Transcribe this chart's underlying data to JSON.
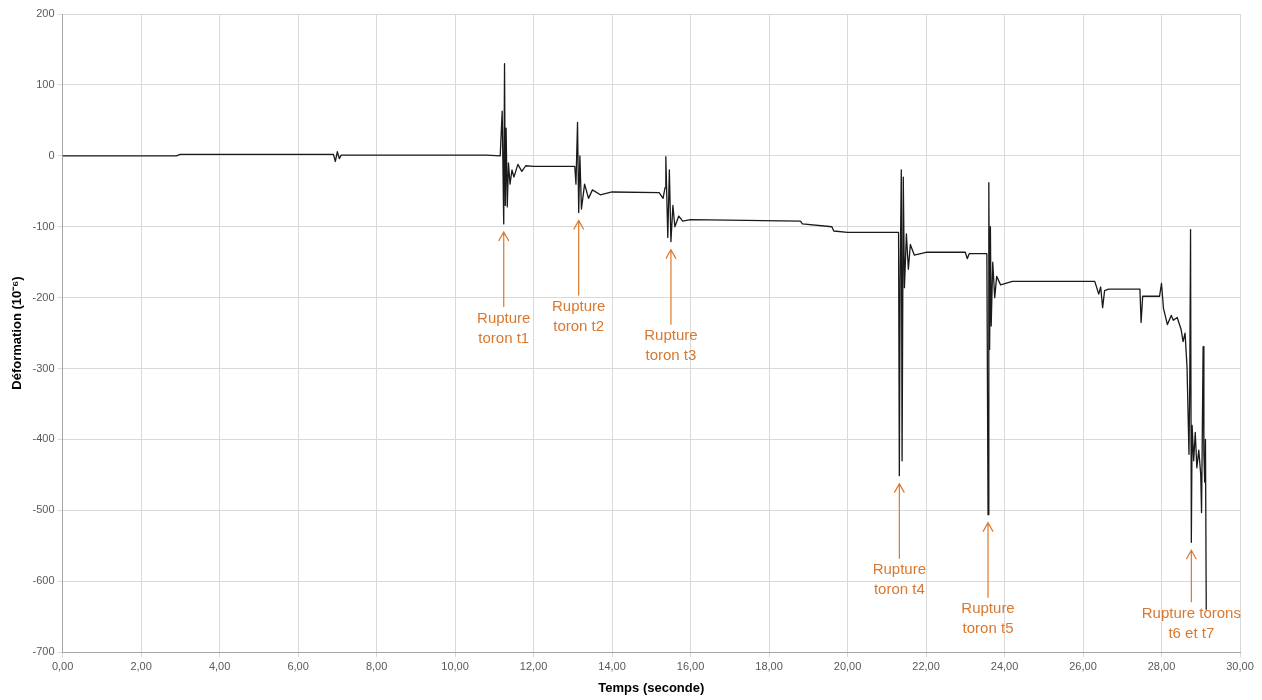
{
  "chart_data": {
    "type": "line",
    "xlabel": "Temps (seconde)",
    "ylabel": "Déformation (10⁻⁶)",
    "x": [
      0,
      2.9,
      3.0,
      6.9,
      6.95,
      7.0,
      7.05,
      7.1,
      10.8,
      11.15,
      11.2,
      11.24,
      11.26,
      11.28,
      11.3,
      11.33,
      11.36,
      11.4,
      11.45,
      11.5,
      11.6,
      11.7,
      11.8,
      12.0,
      13.05,
      13.08,
      13.12,
      13.15,
      13.18,
      13.22,
      13.3,
      13.4,
      13.5,
      13.7,
      14.0,
      15.2,
      15.3,
      15.35,
      15.37,
      15.42,
      15.46,
      15.5,
      15.55,
      15.6,
      15.7,
      15.8,
      16.0,
      18.8,
      18.85,
      19.6,
      19.65,
      20.0,
      21.3,
      21.32,
      21.34,
      21.37,
      21.39,
      21.42,
      21.45,
      21.5,
      21.55,
      21.6,
      21.7,
      22.0,
      23.0,
      23.05,
      23.1,
      23.55,
      23.58,
      23.6,
      23.62,
      23.64,
      23.66,
      23.7,
      23.75,
      23.8,
      23.9,
      24.2,
      26.3,
      26.4,
      26.45,
      26.5,
      26.55,
      26.65,
      27.45,
      27.48,
      27.52,
      27.95,
      28.0,
      28.05,
      28.15,
      28.25,
      28.3,
      28.4,
      28.5,
      28.55,
      28.6,
      28.65,
      28.7,
      28.72,
      28.74,
      28.76,
      28.78,
      28.82,
      28.86,
      28.9,
      28.95,
      29.0,
      29.02,
      29.04,
      29.06,
      29.08,
      29.1,
      29.12,
      29.14
    ],
    "series": [
      {
        "color": "#1a1a1a",
        "values": [
          0,
          0,
          2,
          2,
          -8,
          6,
          -4,
          1,
          1,
          0,
          63,
          -96,
          130,
          -70,
          39,
          -72,
          -10,
          -40,
          -20,
          -30,
          -12,
          -22,
          -14,
          -15,
          -15,
          -40,
          47,
          -80,
          0,
          -75,
          -40,
          -60,
          -48,
          -55,
          -51,
          -52,
          -60,
          -45,
          -1,
          -115,
          -20,
          -121,
          -70,
          -100,
          -85,
          -92,
          -90,
          -92,
          -96,
          -100,
          -106,
          -108,
          -108,
          -451,
          -175,
          -20,
          -430,
          -30,
          -186,
          -110,
          -160,
          -125,
          -140,
          -136,
          -136,
          -145,
          -138,
          -138,
          -506,
          -38,
          -273,
          -100,
          -240,
          -150,
          -200,
          -170,
          -182,
          -177,
          -177,
          -195,
          -185,
          -214,
          -190,
          -188,
          -188,
          -235,
          -198,
          -198,
          -180,
          -215,
          -238,
          -225,
          -232,
          -228,
          -245,
          -262,
          -250,
          -297,
          -421,
          -320,
          -104,
          -545,
          -380,
          -430,
          -390,
          -440,
          -415,
          -450,
          -503,
          -390,
          -269,
          -420,
          -460,
          -400,
          -640
        ]
      }
    ],
    "xlim": [
      0,
      30
    ],
    "ylim": [
      -700,
      200
    ],
    "xticks": [
      {
        "value": 0,
        "label": "0,00"
      },
      {
        "value": 2,
        "label": "2,00"
      },
      {
        "value": 4,
        "label": "4,00"
      },
      {
        "value": 6,
        "label": "6,00"
      },
      {
        "value": 8,
        "label": "8,00"
      },
      {
        "value": 10,
        "label": "10,00"
      },
      {
        "value": 12,
        "label": "12,00"
      },
      {
        "value": 14,
        "label": "14,00"
      },
      {
        "value": 16,
        "label": "16,00"
      },
      {
        "value": 18,
        "label": "18,00"
      },
      {
        "value": 20,
        "label": "20,00"
      },
      {
        "value": 22,
        "label": "22,00"
      },
      {
        "value": 24,
        "label": "24,00"
      },
      {
        "value": 26,
        "label": "26,00"
      },
      {
        "value": 28,
        "label": "28,00"
      },
      {
        "value": 30,
        "label": "30,00"
      }
    ],
    "yticks": [
      -700,
      -600,
      -500,
      -400,
      -300,
      -200,
      -100,
      0,
      100,
      200
    ],
    "grid": true,
    "legend": false,
    "marker": "none",
    "line_style": "solid",
    "annotations": [
      {
        "text": "Rupture\ntoron t1",
        "x": 11.24,
        "y": -96
      },
      {
        "text": "Rupture\ntoron t2",
        "x": 13.15,
        "y": -80
      },
      {
        "text": "Rupture\ntoron t3",
        "x": 15.5,
        "y": -121
      },
      {
        "text": "Rupture\ntoron t4",
        "x": 21.32,
        "y": -451
      },
      {
        "text": "Rupture\ntoron t5",
        "x": 23.58,
        "y": -506
      },
      {
        "text": "Rupture torons\nt6 et t7",
        "x": 28.76,
        "y": -545
      }
    ]
  }
}
